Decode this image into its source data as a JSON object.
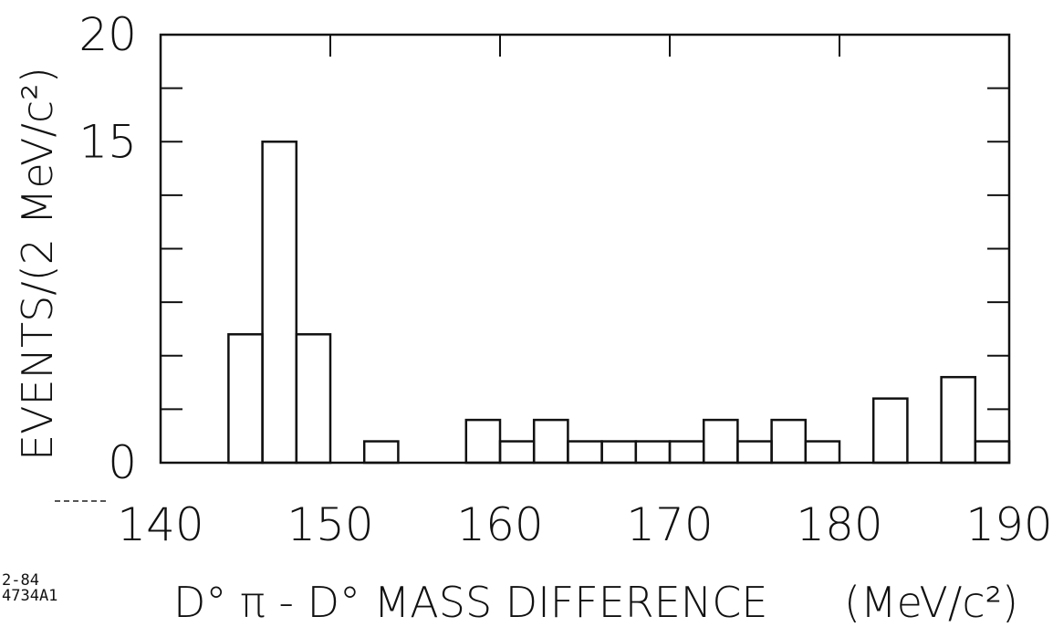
{
  "chart_data": {
    "type": "bar",
    "title": "",
    "xlabel": "D° π - D° MASS DIFFERENCE",
    "xlabel_unit": "(MeV/c²)",
    "ylabel": "EVENTS/(2 MeV/c²)",
    "xlim": [
      140,
      190
    ],
    "ylim": [
      0,
      20
    ],
    "x_ticks": [
      "140",
      "150",
      "160",
      "170",
      "180",
      "190"
    ],
    "y_ticks": [
      "0",
      "15",
      "20"
    ],
    "bin_width": 2,
    "bins": [
      {
        "x0": 144,
        "x1": 146,
        "count": 6
      },
      {
        "x0": 146,
        "x1": 148,
        "count": 15
      },
      {
        "x0": 148,
        "x1": 150,
        "count": 6
      },
      {
        "x0": 152,
        "x1": 154,
        "count": 1
      },
      {
        "x0": 158,
        "x1": 160,
        "count": 2
      },
      {
        "x0": 160,
        "x1": 162,
        "count": 1
      },
      {
        "x0": 162,
        "x1": 164,
        "count": 2
      },
      {
        "x0": 164,
        "x1": 166,
        "count": 1
      },
      {
        "x0": 166,
        "x1": 168,
        "count": 1
      },
      {
        "x0": 168,
        "x1": 170,
        "count": 1
      },
      {
        "x0": 170,
        "x1": 172,
        "count": 1
      },
      {
        "x0": 172,
        "x1": 174,
        "count": 2
      },
      {
        "x0": 174,
        "x1": 176,
        "count": 1
      },
      {
        "x0": 176,
        "x1": 178,
        "count": 2
      },
      {
        "x0": 178,
        "x1": 180,
        "count": 1
      },
      {
        "x0": 182,
        "x1": 184,
        "count": 3
      },
      {
        "x0": 186,
        "x1": 188,
        "count": 4
      },
      {
        "x0": 188,
        "x1": 190,
        "count": 1
      }
    ],
    "grid": false,
    "line_color": "#111111"
  },
  "corner_note": {
    "line1": "2-84",
    "line2": "4734A1"
  }
}
